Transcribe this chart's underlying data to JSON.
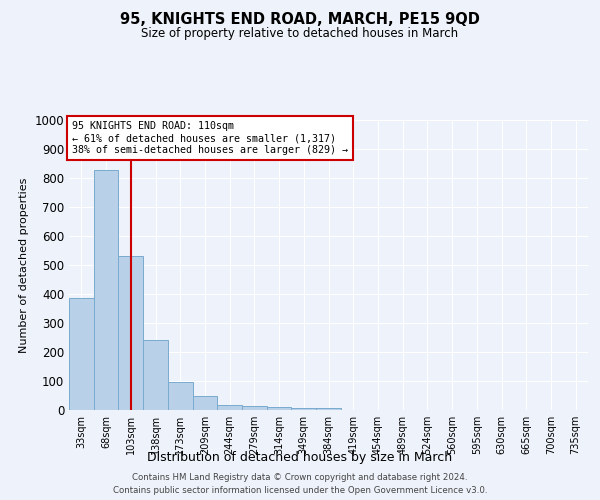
{
  "title": "95, KNIGHTS END ROAD, MARCH, PE15 9QD",
  "subtitle": "Size of property relative to detached houses in March",
  "xlabel": "Distribution of detached houses by size in March",
  "ylabel": "Number of detached properties",
  "bin_labels": [
    "33sqm",
    "68sqm",
    "103sqm",
    "138sqm",
    "173sqm",
    "209sqm",
    "244sqm",
    "279sqm",
    "314sqm",
    "349sqm",
    "384sqm",
    "419sqm",
    "454sqm",
    "489sqm",
    "524sqm",
    "560sqm",
    "595sqm",
    "630sqm",
    "665sqm",
    "700sqm",
    "735sqm"
  ],
  "bar_values": [
    385,
    829,
    530,
    243,
    95,
    50,
    18,
    15,
    10,
    8,
    8,
    0,
    0,
    0,
    0,
    0,
    0,
    0,
    0,
    0,
    0
  ],
  "bar_color": "#b8d0e8",
  "bar_edge_color": "#7aaacf",
  "vline_x": 2,
  "vline_color": "#cc0000",
  "annotation_text": "95 KNIGHTS END ROAD: 110sqm\n← 61% of detached houses are smaller (1,317)\n38% of semi-detached houses are larger (829) →",
  "annotation_box_color": "#ffffff",
  "annotation_box_edge": "#cc0000",
  "ylim": [
    0,
    1000
  ],
  "yticks": [
    0,
    100,
    200,
    300,
    400,
    500,
    600,
    700,
    800,
    900,
    1000
  ],
  "footnote": "Contains HM Land Registry data © Crown copyright and database right 2024.\nContains public sector information licensed under the Open Government Licence v3.0.",
  "background_color": "#eef2fa"
}
